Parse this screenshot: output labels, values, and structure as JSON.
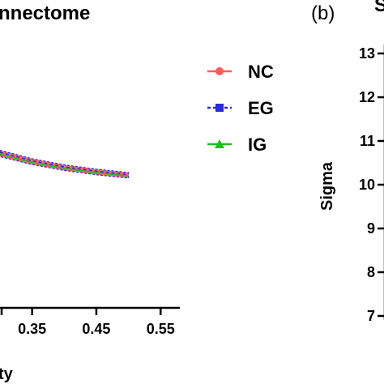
{
  "chart_data": [
    {
      "panel": "",
      "type": "line",
      "title": "nnectome",
      "xlabel": "ty",
      "ylabel": "",
      "x_ticks": [
        "0.35",
        "0.45",
        "0.55"
      ],
      "xlim": [
        0.3,
        0.58
      ],
      "ylim": [
        0.0,
        1.0
      ],
      "x": [
        0.3,
        0.35,
        0.4,
        0.45,
        0.5
      ],
      "series": [
        {
          "name": "NC",
          "marker": "circle",
          "color": "#ff5a5a",
          "values": [
            0.5,
            0.474,
            0.455,
            0.441,
            0.43
          ]
        },
        {
          "name": "EG",
          "marker": "square",
          "color": "#2a2ad8",
          "values": [
            0.505,
            0.478,
            0.458,
            0.444,
            0.433
          ]
        },
        {
          "name": "IG",
          "marker": "triangle",
          "color": "#22bb22",
          "values": [
            0.498,
            0.472,
            0.453,
            0.439,
            0.428
          ]
        }
      ],
      "legend_placement": "right"
    },
    {
      "panel": "(b)",
      "type": "line",
      "title": "S",
      "xlabel": "",
      "ylabel": "Sigma",
      "y_ticks": [
        "7",
        "8",
        "9",
        "10",
        "11",
        "12",
        "13"
      ],
      "ylim": [
        7,
        13
      ],
      "series": []
    }
  ]
}
